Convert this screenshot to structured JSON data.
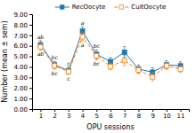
{
  "chart_data": {
    "type": "line",
    "title": "",
    "xlabel": "OPU sessions",
    "ylabel": "Number (mean ± sem)",
    "x": [
      1,
      2,
      3,
      4,
      5,
      6,
      7,
      8,
      9,
      10,
      11
    ],
    "xlim": [
      0.4,
      11.6
    ],
    "xticks": [
      1,
      2,
      3,
      4,
      5,
      6,
      7,
      8,
      9,
      10,
      11
    ],
    "ylim": [
      0.0,
      9.0
    ],
    "yticks": [
      {
        "value": 0.0,
        "label": "0.00"
      },
      {
        "value": 1.0,
        "label": "1.00"
      },
      {
        "value": 2.0,
        "label": "2.00"
      },
      {
        "value": 3.0,
        "label": "3.00"
      },
      {
        "value": 4.0,
        "label": "4.00"
      },
      {
        "value": 5.0,
        "label": "5.00"
      },
      {
        "value": 6.0,
        "label": "6.00"
      },
      {
        "value": 7.0,
        "label": "7.00"
      },
      {
        "value": 8.0,
        "label": "8.00"
      },
      {
        "value": 9.0,
        "label": "9.00"
      }
    ],
    "series": [
      {
        "name": "RecOocyte",
        "line_style": "solid",
        "marker": "square",
        "values": [
          6.1,
          4.2,
          3.65,
          7.4,
          5.2,
          4.5,
          5.4,
          3.8,
          3.5,
          4.2,
          4.1
        ],
        "errors": [
          0.38,
          0.32,
          0.32,
          0.42,
          0.42,
          0.38,
          0.52,
          0.38,
          0.42,
          0.38,
          0.38
        ],
        "labels": [
          "ab",
          "bc",
          "c",
          "a",
          "bc",
          null,
          null,
          null,
          null,
          null,
          null
        ]
      },
      {
        "name": "CultOocyte",
        "line_style": "dashed",
        "marker": "open-square",
        "values": [
          5.9,
          4.1,
          3.55,
          6.85,
          5.05,
          4.05,
          4.6,
          3.7,
          3.05,
          4.1,
          3.8
        ],
        "errors": [
          0.32,
          0.32,
          0.28,
          0.38,
          0.38,
          0.32,
          0.48,
          0.32,
          0.38,
          0.32,
          0.32
        ],
        "labels": [
          "ab",
          "bc",
          "c",
          "a",
          "bc",
          null,
          null,
          null,
          null,
          null,
          null
        ]
      }
    ]
  }
}
